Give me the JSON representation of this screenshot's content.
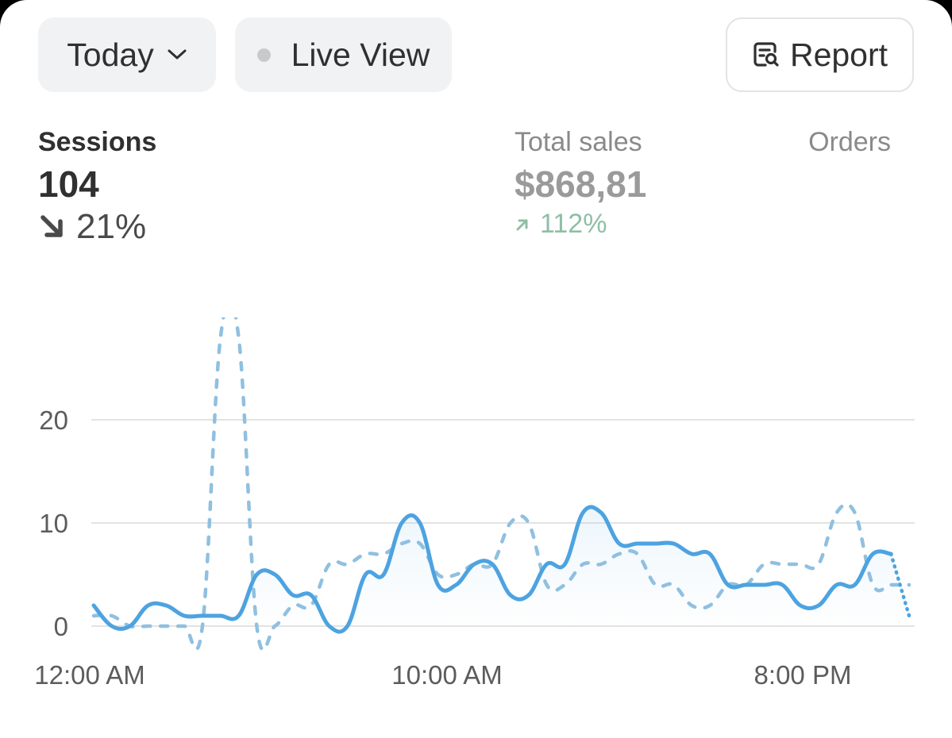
{
  "toolbar": {
    "date_range_label": "Today",
    "live_view_label": "Live View",
    "report_label": "Report"
  },
  "metrics": {
    "sessions": {
      "label": "Sessions",
      "value": "104",
      "change": "21%",
      "direction": "down"
    },
    "total_sales": {
      "label": "Total sales",
      "value": "$868,81",
      "change": "112%",
      "direction": "up"
    },
    "orders": {
      "label": "Orders"
    }
  },
  "icons": {
    "date_range": "chevron-down-icon",
    "live_view": "status-dot-icon",
    "report": "report-search-icon",
    "sessions_change": "arrow-down-right-icon",
    "sales_change": "arrow-up-right-icon"
  },
  "colors": {
    "current_series": "#4da3e0",
    "comparison_series": "#8fc0e0",
    "grid": "#e3e3e3",
    "sales_positive": "#8fbfa6"
  },
  "chart_data": {
    "type": "line",
    "x_ticks": [
      "12:00 AM",
      "10:00 AM",
      "8:00 PM"
    ],
    "y_ticks": [
      0,
      10,
      20
    ],
    "ylim": [
      0,
      28
    ],
    "grid": true,
    "series": [
      {
        "style": "solid",
        "x": [
          0,
          0.5,
          1,
          1.5,
          2,
          2.5,
          3,
          3.5,
          4,
          4.5,
          5,
          5.5,
          6,
          6.5,
          7,
          7.5,
          8,
          8.5,
          9,
          9.5,
          10,
          10.5,
          11,
          11.5,
          12,
          12.5,
          13,
          13.5,
          14,
          14.5,
          15,
          15.5,
          16,
          16.5,
          17,
          17.5,
          18,
          18.5,
          19,
          19.5,
          20,
          20.5,
          21,
          21.5,
          22,
          22.5
        ],
        "y": [
          2,
          0,
          0,
          2,
          2,
          1,
          1,
          1,
          1,
          5,
          5,
          3,
          3,
          0,
          0,
          5,
          5,
          10,
          10,
          4,
          4,
          6,
          6,
          3,
          3,
          6,
          6,
          11,
          11,
          8,
          8,
          8,
          8,
          7,
          7,
          4,
          4,
          4,
          4,
          2,
          2,
          4,
          4,
          7,
          7,
          1
        ]
      },
      {
        "style": "dashed",
        "x": [
          0,
          0.5,
          1,
          1.5,
          2,
          2.5,
          3,
          3.5,
          4,
          4.5,
          5,
          5.5,
          6,
          6.5,
          7,
          7.5,
          8,
          8.5,
          9,
          9.5,
          10,
          10.5,
          11,
          11.5,
          12,
          12.5,
          13,
          13.5,
          14,
          14.5,
          15,
          15.5,
          16,
          16.5,
          17,
          17.5,
          18,
          18.5,
          19,
          19.5,
          20,
          20.5,
          21,
          21.5,
          22,
          22.5
        ],
        "y": [
          1,
          1,
          0,
          0,
          0,
          0,
          0,
          28,
          28,
          0,
          0,
          2,
          2,
          6,
          6,
          7,
          7,
          8,
          8,
          5,
          5,
          6,
          6,
          10,
          10,
          4,
          4,
          6,
          6,
          7,
          7,
          4,
          4,
          2,
          2,
          4,
          4,
          6,
          6,
          6,
          6,
          11,
          11,
          4,
          4,
          4
        ]
      }
    ]
  }
}
